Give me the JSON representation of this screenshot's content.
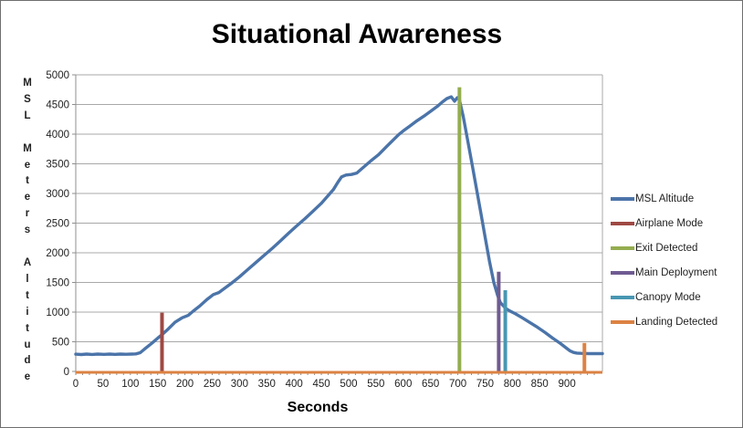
{
  "chart_data": {
    "type": "line",
    "title": "Situational Awareness",
    "xlabel": "Seconds",
    "ylabel": "MSL Meters Altitude",
    "ylabel_orientation": "stacked-vertical",
    "xlim": [
      0,
      965
    ],
    "ylim": [
      0,
      5000
    ],
    "x_ticks": [
      0,
      50,
      100,
      150,
      200,
      250,
      300,
      350,
      400,
      450,
      500,
      550,
      600,
      650,
      700,
      750,
      800,
      850,
      900
    ],
    "x_minor_tick_step": 12.5,
    "y_ticks": [
      0,
      500,
      1000,
      1500,
      2000,
      2500,
      3000,
      3500,
      4000,
      4500,
      5000
    ],
    "grid": "horizontal-only",
    "legend_position": "right",
    "colors": {
      "grid": "#a8a8a8",
      "axis": "#8f8f8f",
      "tick_text": "#1f1f1f",
      "title_text": "#000000",
      "background": "#ffffff"
    },
    "series": [
      {
        "name": "MSL Altitude",
        "color": "#4b74a9",
        "kind": "line",
        "points": [
          [
            0,
            290
          ],
          [
            10,
            285
          ],
          [
            20,
            292
          ],
          [
            30,
            286
          ],
          [
            40,
            292
          ],
          [
            52,
            287
          ],
          [
            62,
            292
          ],
          [
            72,
            288
          ],
          [
            82,
            293
          ],
          [
            92,
            289
          ],
          [
            102,
            292
          ],
          [
            110,
            295
          ],
          [
            118,
            315
          ],
          [
            128,
            390
          ],
          [
            140,
            480
          ],
          [
            150,
            560
          ],
          [
            158,
            620
          ],
          [
            170,
            720
          ],
          [
            182,
            830
          ],
          [
            195,
            905
          ],
          [
            206,
            945
          ],
          [
            215,
            1015
          ],
          [
            228,
            1110
          ],
          [
            240,
            1210
          ],
          [
            252,
            1295
          ],
          [
            262,
            1330
          ],
          [
            272,
            1395
          ],
          [
            285,
            1485
          ],
          [
            300,
            1595
          ],
          [
            315,
            1715
          ],
          [
            330,
            1835
          ],
          [
            345,
            1955
          ],
          [
            360,
            2075
          ],
          [
            375,
            2200
          ],
          [
            390,
            2330
          ],
          [
            405,
            2455
          ],
          [
            420,
            2575
          ],
          [
            435,
            2705
          ],
          [
            450,
            2835
          ],
          [
            462,
            2960
          ],
          [
            472,
            3065
          ],
          [
            480,
            3185
          ],
          [
            487,
            3280
          ],
          [
            495,
            3310
          ],
          [
            505,
            3320
          ],
          [
            515,
            3345
          ],
          [
            525,
            3425
          ],
          [
            540,
            3545
          ],
          [
            555,
            3655
          ],
          [
            570,
            3795
          ],
          [
            582,
            3905
          ],
          [
            592,
            3995
          ],
          [
            600,
            4055
          ],
          [
            612,
            4135
          ],
          [
            625,
            4225
          ],
          [
            638,
            4305
          ],
          [
            650,
            4385
          ],
          [
            662,
            4465
          ],
          [
            672,
            4545
          ],
          [
            680,
            4600
          ],
          [
            688,
            4630
          ],
          [
            694,
            4555
          ],
          [
            699,
            4615
          ],
          [
            703,
            4580
          ],
          [
            710,
            4300
          ],
          [
            718,
            3900
          ],
          [
            726,
            3500
          ],
          [
            734,
            3090
          ],
          [
            742,
            2680
          ],
          [
            750,
            2270
          ],
          [
            758,
            1860
          ],
          [
            766,
            1500
          ],
          [
            773,
            1280
          ],
          [
            778,
            1160
          ],
          [
            783,
            1110
          ],
          [
            788,
            1060
          ],
          [
            795,
            1020
          ],
          [
            805,
            975
          ],
          [
            818,
            905
          ],
          [
            832,
            825
          ],
          [
            846,
            745
          ],
          [
            860,
            655
          ],
          [
            874,
            560
          ],
          [
            888,
            470
          ],
          [
            898,
            400
          ],
          [
            906,
            345
          ],
          [
            912,
            320
          ],
          [
            918,
            310
          ],
          [
            926,
            305
          ],
          [
            940,
            300
          ],
          [
            955,
            300
          ],
          [
            965,
            300
          ]
        ]
      },
      {
        "name": "Airplane Mode",
        "color": "#9e4843",
        "kind": "event-spike",
        "time": 158,
        "peak": 990
      },
      {
        "name": "Exit Detected",
        "color": "#94ad4f",
        "kind": "event-spike",
        "time": 703,
        "peak": 4790
      },
      {
        "name": "Main Deployment",
        "color": "#6f5b92",
        "kind": "event-spike",
        "time": 775,
        "peak": 1680
      },
      {
        "name": "Canopy Mode",
        "color": "#4897b2",
        "kind": "event-spike",
        "time": 787,
        "peak": 1370
      },
      {
        "name": "Landing Detected",
        "color": "#dc8243",
        "kind": "event-spike-baseline",
        "time": 932,
        "peak": 480,
        "baseline_value": 0
      }
    ]
  }
}
